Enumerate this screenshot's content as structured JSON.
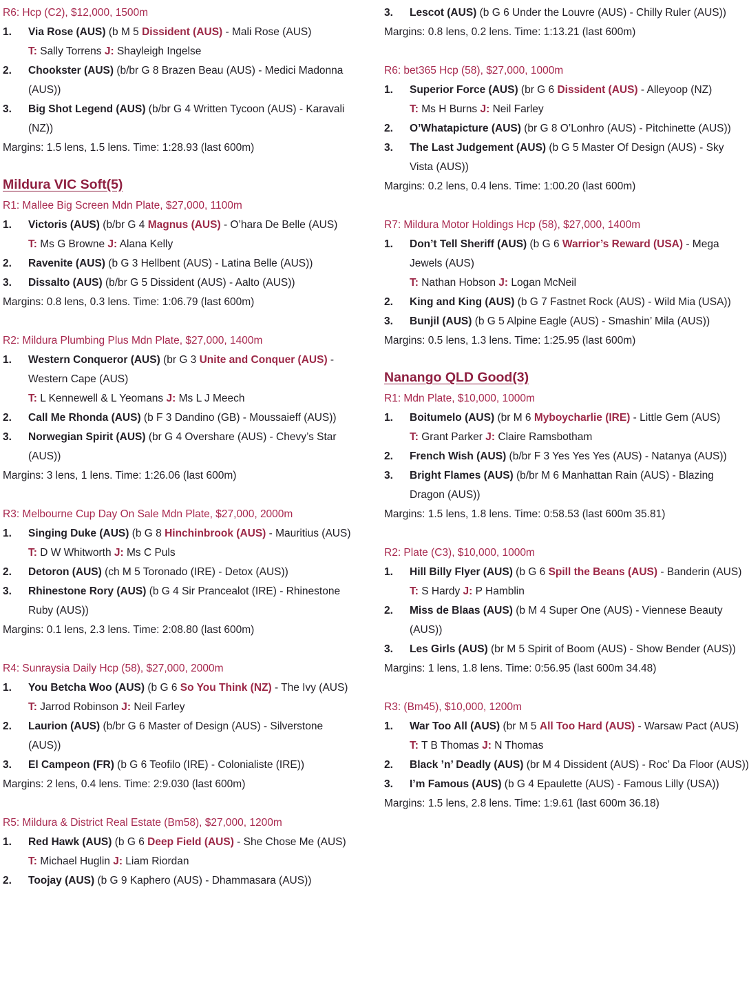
{
  "colors": {
    "section_heading": "#8F2041",
    "race_heading": "#A8294F",
    "accent_red": "#9C2847",
    "body_text": "#232027",
    "background": "#FFFFFF"
  },
  "labels": {
    "trainer": "T:",
    "jockey": "J:"
  },
  "columns": [
    {
      "blocks": [
        {
          "type": "race_heading",
          "text": "R6: Hcp (C2), $12,000, 1500m"
        },
        {
          "type": "entry",
          "num": "1.",
          "segments": [
            [
              "b",
              "Via Rose (AUS) "
            ],
            [
              "n",
              "(b M 5 "
            ],
            [
              "r",
              "Dissident (AUS)"
            ],
            [
              "n",
              " - Mali Rose (AUS)"
            ]
          ]
        },
        {
          "type": "tj",
          "t": "Sally Torrens",
          "j": "Shayleigh Ingelse"
        },
        {
          "type": "entry",
          "num": "2.",
          "segments": [
            [
              "b",
              "Chookster (AUS) "
            ],
            [
              "n",
              "(b/br G 8 Brazen Beau (AUS) - Medici Madonna (AUS))"
            ]
          ]
        },
        {
          "type": "entry",
          "num": "3.",
          "segments": [
            [
              "b",
              "Big Shot Legend (AUS) "
            ],
            [
              "n",
              "(b/br G 4 Written Tycoon (AUS) - Karavali (NZ))"
            ]
          ]
        },
        {
          "type": "margins",
          "text": "Margins: 1.5 lens, 1.5 lens. Time: 1:28.93 (last 600m)"
        },
        {
          "type": "section_heading",
          "text": "Mildura VIC Soft(5)"
        },
        {
          "type": "race_heading",
          "text": "R1: Mallee Big Screen Mdn Plate, $27,000, 1100m"
        },
        {
          "type": "entry",
          "num": "1.",
          "segments": [
            [
              "b",
              "Victoris (AUS) "
            ],
            [
              "n",
              "(b/br G 4 "
            ],
            [
              "r",
              "Magnus (AUS)"
            ],
            [
              "n",
              " - O’hara De Belle (AUS)"
            ]
          ]
        },
        {
          "type": "tj",
          "t": "Ms G Browne",
          "j": "Alana Kelly"
        },
        {
          "type": "entry",
          "num": "2.",
          "segments": [
            [
              "b",
              "Ravenite (AUS) "
            ],
            [
              "n",
              "(b G 3 Hellbent (AUS) - Latina Belle (AUS))"
            ]
          ]
        },
        {
          "type": "entry",
          "num": "3.",
          "segments": [
            [
              "b",
              "Dissalto (AUS) "
            ],
            [
              "n",
              "(b/br G 5 Dissident (AUS) - Aalto (AUS))"
            ]
          ]
        },
        {
          "type": "margins",
          "text": "Margins: 0.8 lens, 0.3 lens. Time: 1:06.79 (last 600m)"
        },
        {
          "type": "race_heading",
          "text": "R2: Mildura Plumbing Plus Mdn Plate, $27,000, 1400m"
        },
        {
          "type": "entry",
          "num": "1.",
          "segments": [
            [
              "b",
              "Western Conqueror (AUS) "
            ],
            [
              "n",
              "(br G 3 "
            ],
            [
              "r",
              "Unite and Conquer (AUS)"
            ],
            [
              "n",
              " - Western Cape (AUS)"
            ]
          ]
        },
        {
          "type": "tj",
          "t": "L Kennewell & L Yeomans",
          "j": "Ms L J Meech"
        },
        {
          "type": "entry",
          "num": "2.",
          "segments": [
            [
              "b",
              "Call Me Rhonda (AUS) "
            ],
            [
              "n",
              "(b F 3 Dandino (GB) - Moussaieff (AUS))"
            ]
          ]
        },
        {
          "type": "entry",
          "num": "3.",
          "segments": [
            [
              "b",
              "Norwegian Spirit (AUS) "
            ],
            [
              "n",
              "(br G 4 Overshare (AUS) - Chevy’s Star (AUS))"
            ]
          ]
        },
        {
          "type": "margins",
          "text": "Margins: 3 lens, 1 lens. Time: 1:26.06 (last 600m)"
        },
        {
          "type": "race_heading",
          "text": "R3: Melbourne Cup Day On Sale Mdn Plate, $27,000, 2000m"
        },
        {
          "type": "entry",
          "num": "1.",
          "segments": [
            [
              "b",
              "Singing Duke (AUS) "
            ],
            [
              "n",
              "(b G 8 "
            ],
            [
              "r",
              "Hinchinbrook (AUS)"
            ],
            [
              "n",
              " - Mauritius (AUS)"
            ]
          ]
        },
        {
          "type": "tj",
          "t": "D W Whitworth",
          "j": "Ms C Puls"
        },
        {
          "type": "entry",
          "num": "2.",
          "segments": [
            [
              "b",
              "Detoron (AUS) "
            ],
            [
              "n",
              "(ch M 5 Toronado (IRE) - Detox (AUS))"
            ]
          ]
        },
        {
          "type": "entry",
          "num": "3.",
          "segments": [
            [
              "b",
              "Rhinestone Rory (AUS) "
            ],
            [
              "n",
              "(b G 4 Sir Prancealot (IRE) - Rhinestone Ruby (AUS))"
            ]
          ]
        },
        {
          "type": "margins",
          "text": "Margins: 0.1 lens, 2.3 lens. Time: 2:08.80 (last 600m)"
        },
        {
          "type": "race_heading",
          "text": "R4: Sunraysia Daily Hcp (58), $27,000, 2000m"
        },
        {
          "type": "entry",
          "num": "1.",
          "segments": [
            [
              "b",
              "You Betcha Woo (AUS) "
            ],
            [
              "n",
              "(b G 6 "
            ],
            [
              "r",
              "So You Think (NZ)"
            ],
            [
              "n",
              " - The Ivy (AUS)"
            ]
          ]
        },
        {
          "type": "tj",
          "t": "Jarrod Robinson",
          "j": "Neil Farley"
        },
        {
          "type": "entry",
          "num": "2.",
          "segments": [
            [
              "b",
              "Laurion (AUS) "
            ],
            [
              "n",
              "(b/br G 6 Master of Design (AUS) - Silverstone (AUS))"
            ]
          ]
        },
        {
          "type": "entry",
          "num": "3.",
          "segments": [
            [
              "b",
              "El Campeon (FR) "
            ],
            [
              "n",
              "(b G 6 Teofilo (IRE) - Colonialiste (IRE))"
            ]
          ]
        },
        {
          "type": "margins",
          "text": "Margins: 2 lens, 0.4 lens. Time: 2:9.030 (last 600m)"
        },
        {
          "type": "race_heading",
          "text": "R5: Mildura & District Real Estate (Bm58), $27,000, 1200m"
        },
        {
          "type": "entry",
          "num": "1.",
          "segments": [
            [
              "b",
              "Red Hawk (AUS) "
            ],
            [
              "n",
              "(b G 6 "
            ],
            [
              "r",
              "Deep Field (AUS)"
            ],
            [
              "n",
              " - She Chose Me (AUS)"
            ]
          ]
        },
        {
          "type": "tj",
          "t": "Michael Huglin",
          "j": "Liam Riordan"
        },
        {
          "type": "entry",
          "num": "2.",
          "segments": [
            [
              "b",
              "Toojay (AUS) "
            ],
            [
              "n",
              "(b G 9 Kaphero (AUS) - Dhammasara (AUS))"
            ]
          ]
        }
      ]
    },
    {
      "blocks": [
        {
          "type": "entry",
          "num": "3.",
          "segments": [
            [
              "b",
              "Lescot (AUS) "
            ],
            [
              "n",
              "(b G 6 Under the Louvre (AUS) - Chilly Ruler (AUS))"
            ]
          ]
        },
        {
          "type": "margins",
          "text": "Margins: 0.8 lens, 0.2 lens. Time: 1:13.21 (last 600m)"
        },
        {
          "type": "race_heading",
          "text": "R6: bet365 Hcp (58), $27,000, 1000m"
        },
        {
          "type": "entry",
          "num": "1.",
          "segments": [
            [
              "b",
              "Superior Force (AUS) "
            ],
            [
              "n",
              "(br G 6 "
            ],
            [
              "r",
              "Dissident (AUS)"
            ],
            [
              "n",
              " - Alleyoop (NZ)"
            ]
          ]
        },
        {
          "type": "tj",
          "t": "Ms H Burns",
          "j": "Neil Farley"
        },
        {
          "type": "entry",
          "num": "2.",
          "segments": [
            [
              "b",
              "O’Whatapicture (AUS) "
            ],
            [
              "n",
              "(br G 8 O’Lonhro (AUS) - Pitchinette (AUS))"
            ]
          ]
        },
        {
          "type": "entry",
          "num": "3.",
          "segments": [
            [
              "b",
              "The Last Judgement (AUS) "
            ],
            [
              "n",
              "(b G 5 Master Of Design (AUS) - Sky Vista (AUS))"
            ]
          ]
        },
        {
          "type": "margins",
          "text": "Margins: 0.2 lens, 0.4 lens. Time: 1:00.20 (last 600m)"
        },
        {
          "type": "race_heading",
          "text": "R7: Mildura Motor Holdings Hcp (58), $27,000, 1400m"
        },
        {
          "type": "entry",
          "num": "1.",
          "segments": [
            [
              "b",
              "Don’t Tell Sheriff (AUS) "
            ],
            [
              "n",
              "(b G 6 "
            ],
            [
              "r",
              "Warrior’s Reward (USA)"
            ],
            [
              "n",
              " - Mega Jewels (AUS)"
            ]
          ]
        },
        {
          "type": "tj",
          "t": "Nathan Hobson",
          "j": "Logan McNeil"
        },
        {
          "type": "entry",
          "num": "2.",
          "segments": [
            [
              "b",
              "King and King (AUS) "
            ],
            [
              "n",
              "(b G 7 Fastnet Rock (AUS) - Wild Mia (USA))"
            ]
          ]
        },
        {
          "type": "entry",
          "num": "3.",
          "segments": [
            [
              "b",
              "Bunjil (AUS) "
            ],
            [
              "n",
              "(b G 5 Alpine Eagle (AUS) - Smashin’ Mila (AUS))"
            ]
          ]
        },
        {
          "type": "margins",
          "text": "Margins: 0.5 lens, 1.3 lens. Time: 1:25.95 (last 600m)"
        },
        {
          "type": "section_heading",
          "text": "Nanango QLD Good(3)"
        },
        {
          "type": "race_heading",
          "text": "R1: Mdn Plate, $10,000, 1000m"
        },
        {
          "type": "entry",
          "num": "1.",
          "segments": [
            [
              "b",
              "Boitumelo (AUS) "
            ],
            [
              "n",
              "(br M 6 "
            ],
            [
              "r",
              "Myboycharlie (IRE)"
            ],
            [
              "n",
              " - Little Gem (AUS)"
            ]
          ]
        },
        {
          "type": "tj",
          "t": "Grant Parker",
          "j": "Claire Ramsbotham"
        },
        {
          "type": "entry",
          "num": "2.",
          "segments": [
            [
              "b",
              "French Wish (AUS) "
            ],
            [
              "n",
              "(b/br F 3 Yes Yes Yes (AUS) - Natanya (AUS))"
            ]
          ]
        },
        {
          "type": "entry",
          "num": "3.",
          "segments": [
            [
              "b",
              "Bright Flames (AUS) "
            ],
            [
              "n",
              "(b/br M 6 Manhattan Rain (AUS) - Blazing Dragon (AUS))"
            ]
          ]
        },
        {
          "type": "margins",
          "text": "Margins: 1.5 lens, 1.8 lens. Time: 0:58.53 (last 600m 35.81)"
        },
        {
          "type": "race_heading",
          "text": "R2: Plate (C3), $10,000, 1000m"
        },
        {
          "type": "entry",
          "num": "1.",
          "segments": [
            [
              "b",
              "Hill Billy Flyer (AUS) "
            ],
            [
              "n",
              "(b G 6 "
            ],
            [
              "r",
              "Spill the Beans (AUS)"
            ],
            [
              "n",
              " - Banderin (AUS)"
            ]
          ]
        },
        {
          "type": "tj",
          "t": "S Hardy",
          "j": "P Hamblin"
        },
        {
          "type": "entry",
          "num": "2.",
          "segments": [
            [
              "b",
              "Miss de Blaas (AUS) "
            ],
            [
              "n",
              "(b M 4 Super One (AUS) - Viennese Beauty (AUS))"
            ]
          ]
        },
        {
          "type": "entry",
          "num": "3.",
          "segments": [
            [
              "b",
              "Les Girls (AUS) "
            ],
            [
              "n",
              "(br M 5 Spirit of Boom (AUS) - Show Bender (AUS))"
            ]
          ]
        },
        {
          "type": "margins",
          "text": "Margins: 1 lens, 1.8 lens. Time: 0:56.95 (last 600m 34.48)"
        },
        {
          "type": "race_heading",
          "text": "R3: (Bm45), $10,000, 1200m"
        },
        {
          "type": "entry",
          "num": "1.",
          "segments": [
            [
              "b",
              "War Too All (AUS) "
            ],
            [
              "n",
              "(br M 5 "
            ],
            [
              "r",
              "All Too Hard (AUS)"
            ],
            [
              "n",
              " - Warsaw Pact (AUS)"
            ]
          ]
        },
        {
          "type": "tj",
          "t": "T B Thomas",
          "j": "N Thomas"
        },
        {
          "type": "entry",
          "num": "2.",
          "segments": [
            [
              "b",
              "Black ’n’ Deadly (AUS) "
            ],
            [
              "n",
              "(br M 4 Dissident (AUS) - Roc’ Da Floor (AUS))"
            ]
          ]
        },
        {
          "type": "entry",
          "num": "3.",
          "segments": [
            [
              "b",
              "I’m Famous (AUS) "
            ],
            [
              "n",
              "(b G 4 Epaulette (AUS) - Famous Lilly (USA))"
            ]
          ]
        },
        {
          "type": "margins",
          "text": "Margins: 1.5 lens, 2.8 lens. Time: 1:9.61 (last 600m 36.18)"
        }
      ]
    }
  ]
}
